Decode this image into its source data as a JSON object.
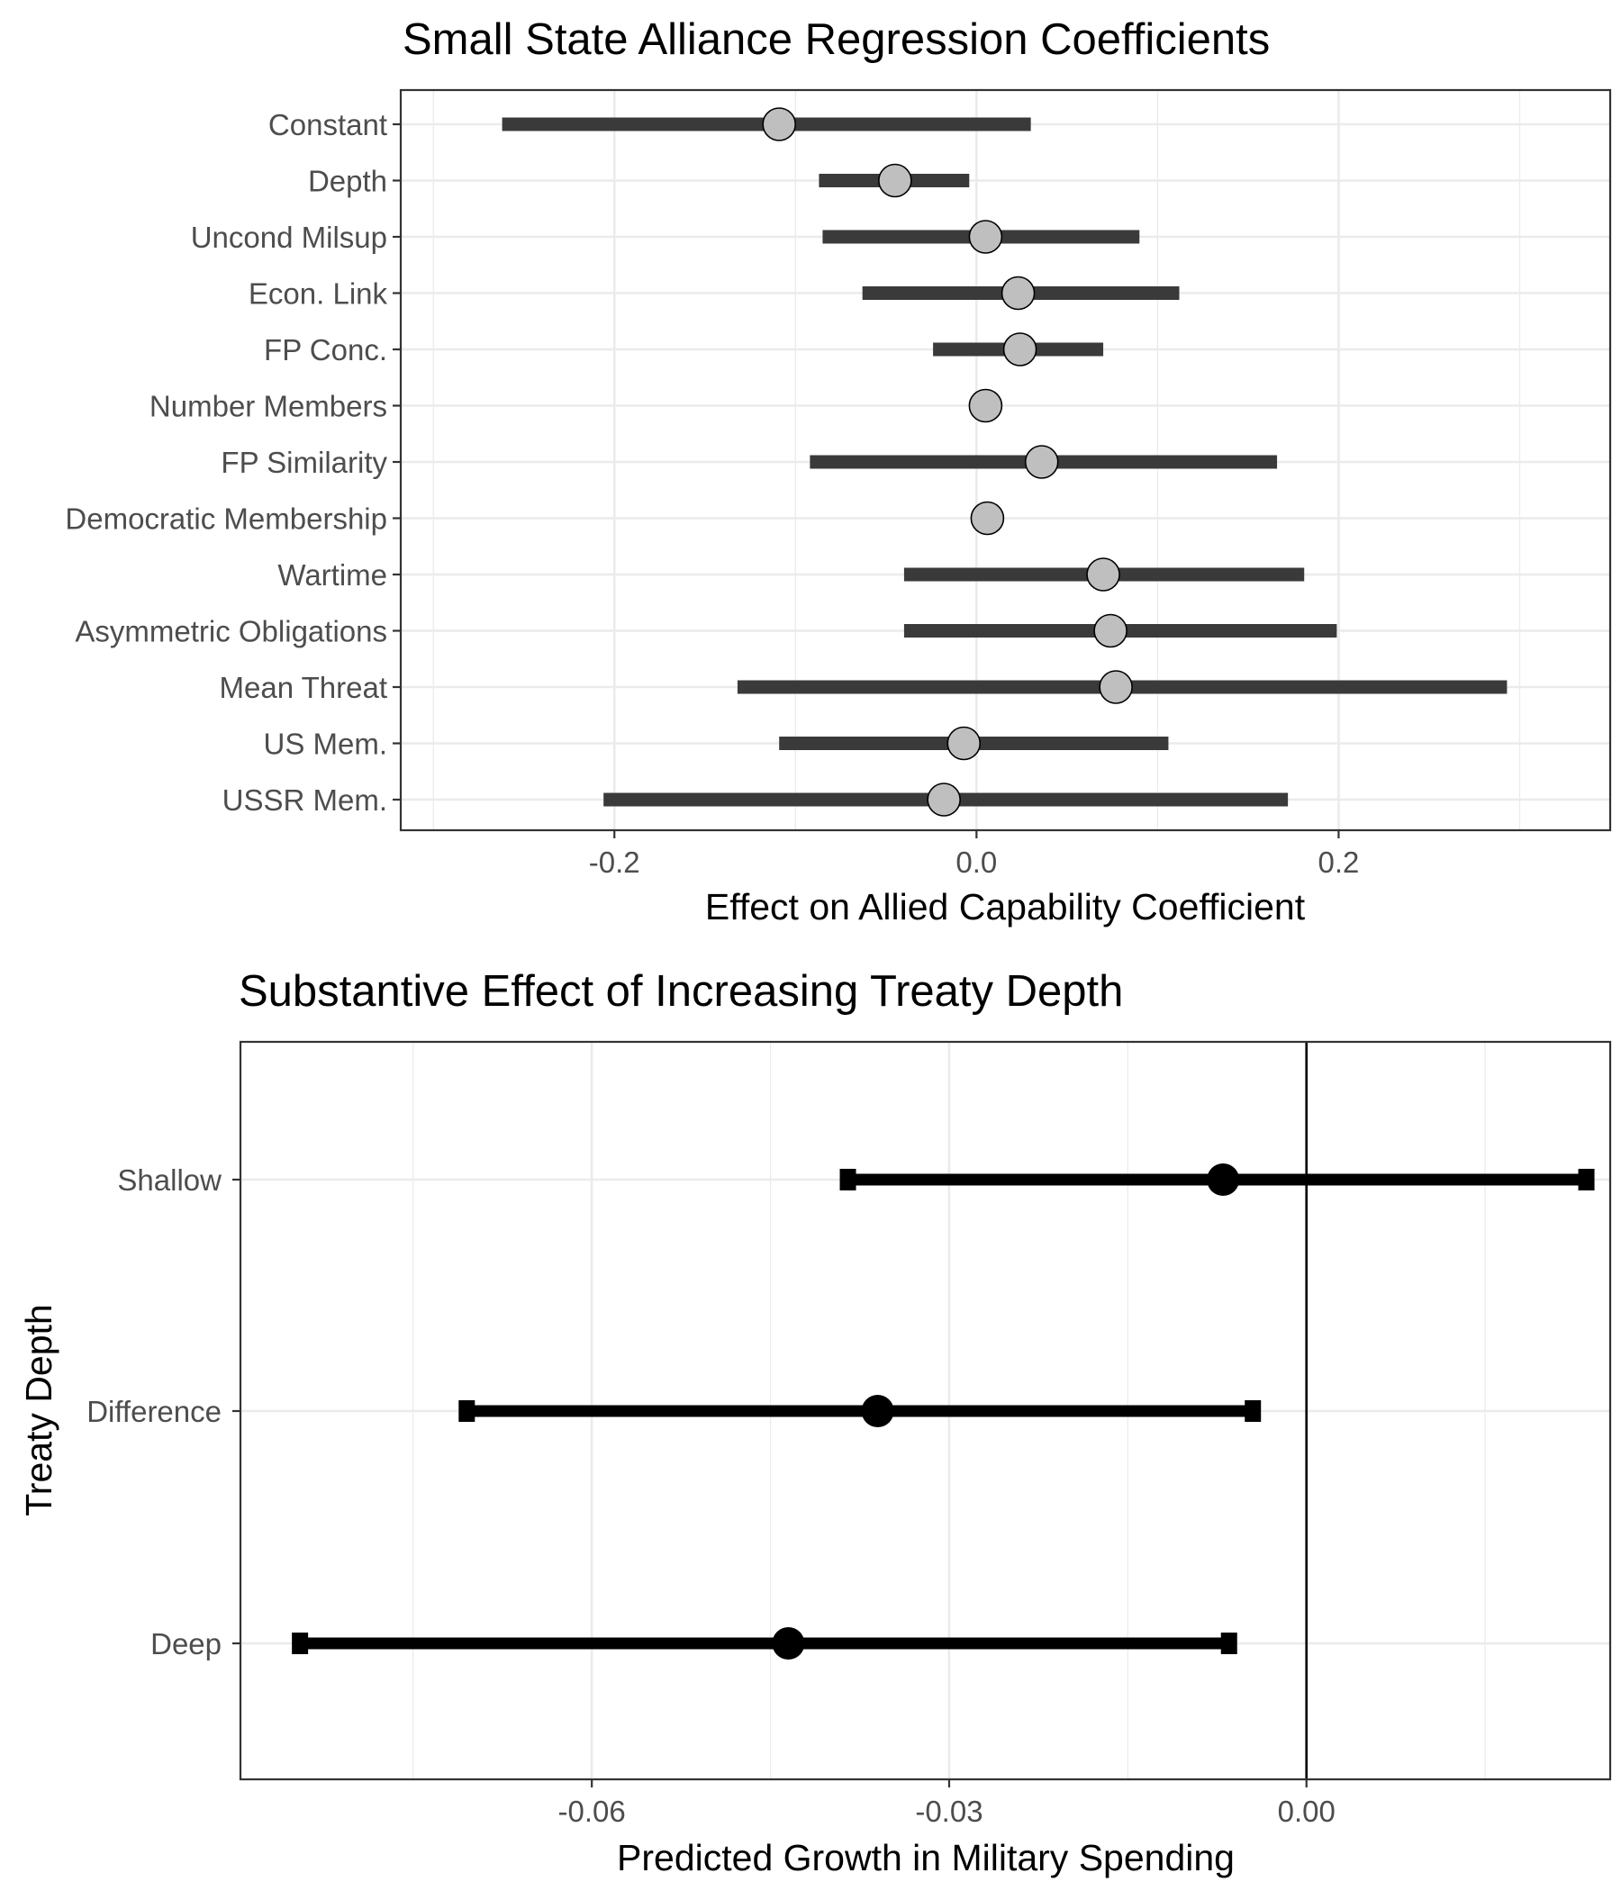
{
  "chart_data": [
    {
      "type": "scatter",
      "title": "Small State Alliance Regression Coefficients",
      "xlabel": "Effect on Allied Capability Coefficient",
      "ylabel": "",
      "xlim": [
        -0.318,
        0.35
      ],
      "xticks": [
        -0.2,
        0.0,
        0.2
      ],
      "xtick_labels": [
        "-0.2",
        "0.0",
        "0.2"
      ],
      "grid": true,
      "legend": "none",
      "colors": {
        "interval": "#3a3a3a",
        "point_fill": "#bfbfbf",
        "point_stroke": "#000000"
      },
      "categories": [
        "Constant",
        "Depth",
        "Uncond Milsup",
        "Econ. Link",
        "FP Conc.",
        "Number Members",
        "FP Similarity",
        "Democratic Membership",
        "Wartime",
        "Asymmetric Obligations",
        "Mean Threat",
        "US Mem.",
        "USSR Mem."
      ],
      "estimate": [
        -0.109,
        -0.045,
        0.005,
        0.023,
        0.024,
        0.005,
        0.036,
        0.006,
        0.07,
        0.074,
        0.077,
        -0.007,
        -0.018
      ],
      "lower": [
        -0.262,
        -0.087,
        -0.085,
        -0.063,
        -0.024,
        0.005,
        -0.092,
        0.006,
        -0.04,
        -0.04,
        -0.132,
        -0.109,
        -0.206
      ],
      "upper": [
        0.03,
        -0.004,
        0.09,
        0.112,
        0.07,
        0.005,
        0.166,
        0.006,
        0.181,
        0.199,
        0.293,
        0.106,
        0.172
      ]
    },
    {
      "type": "scatter",
      "title": "Substantive Effect of Increasing Treaty Depth",
      "xlabel": "Predicted Growth in Military Spending",
      "ylabel": "Treaty Depth",
      "xlim": [
        -0.0895,
        0.0255
      ],
      "xticks": [
        -0.06,
        -0.03,
        0.0
      ],
      "xtick_labels": [
        "-0.06",
        "-0.03",
        "0.00"
      ],
      "reference_line": 0,
      "grid": true,
      "legend": "none",
      "colors": {
        "interval": "#000000",
        "point_fill": "#000000"
      },
      "categories": [
        "Shallow",
        "Difference",
        "Deep"
      ],
      "estimate": [
        -0.007,
        -0.036,
        -0.0435
      ],
      "lower": [
        -0.0385,
        -0.0705,
        -0.0845
      ],
      "upper": [
        0.0235,
        -0.0045,
        -0.0065
      ]
    }
  ]
}
